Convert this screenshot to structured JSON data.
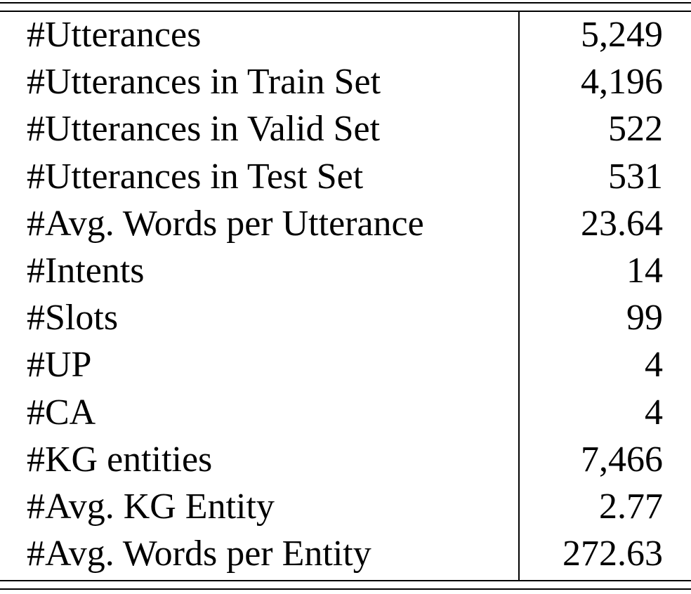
{
  "table": {
    "rows": [
      {
        "label": "#Utterances",
        "value": "5,249"
      },
      {
        "label": "#Utterances in Train Set",
        "value": "4,196"
      },
      {
        "label": "#Utterances in Valid Set",
        "value": "522"
      },
      {
        "label": "#Utterances in Test Set",
        "value": "531"
      },
      {
        "label": "#Avg. Words per Utterance",
        "value": "23.64"
      },
      {
        "label": "#Intents",
        "value": "14"
      },
      {
        "label": "#Slots",
        "value": "99"
      },
      {
        "label": "#UP",
        "value": "4"
      },
      {
        "label": "#CA",
        "value": "4"
      },
      {
        "label": "#KG entities",
        "value": "7,466"
      },
      {
        "label": "#Avg. KG Entity",
        "value": "2.77"
      },
      {
        "label": "#Avg. Words per Entity",
        "value": "272.63"
      }
    ]
  }
}
